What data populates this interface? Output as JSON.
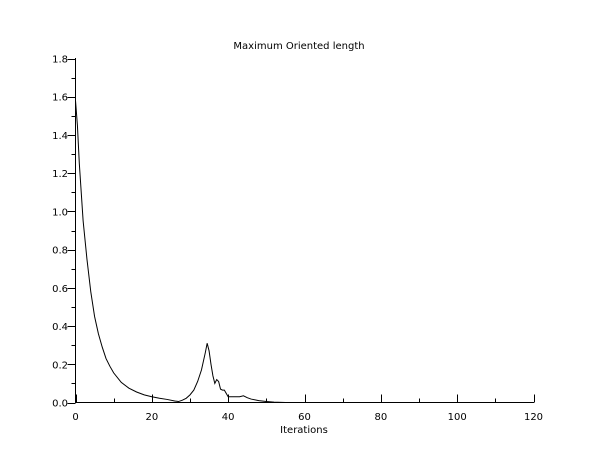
{
  "chart_data": {
    "type": "line",
    "title": "Maximum Oriented length",
    "xlabel": "Iterations",
    "ylabel": "",
    "xlim": [
      0,
      120
    ],
    "ylim": [
      0.0,
      1.8
    ],
    "xticks": [
      0,
      20,
      40,
      60,
      80,
      100,
      120
    ],
    "xtick_labels": [
      "0",
      "20",
      "40",
      "60",
      "80",
      "100",
      "120"
    ],
    "yticks": [
      0.0,
      0.2,
      0.4,
      0.6,
      0.8,
      1.0,
      1.2,
      1.4,
      1.6,
      1.8
    ],
    "ytick_labels": [
      "0.0",
      "0.2",
      "0.4",
      "0.6",
      "0.8",
      "1.0",
      "1.2",
      "1.4",
      "1.6",
      "1.8"
    ],
    "grid": false,
    "legend": "none",
    "colors": {
      "line": "#000000",
      "axes": "#000000",
      "background": "#ffffff"
    },
    "series": [
      {
        "x": [
          0,
          0.5,
          1,
          2,
          3,
          4,
          5,
          6,
          7,
          8,
          9,
          10,
          12,
          14,
          16,
          18,
          20,
          22,
          24,
          26,
          27,
          28,
          29,
          30,
          31,
          32,
          33,
          34,
          34.5,
          35,
          35.5,
          36,
          36.5,
          37,
          37.5,
          38,
          38.5,
          39,
          40,
          41,
          42,
          43,
          44,
          45,
          46,
          48,
          50,
          52,
          55,
          60,
          70,
          80,
          90,
          100,
          110,
          120
        ],
        "y": [
          1.58,
          1.45,
          1.25,
          0.95,
          0.75,
          0.58,
          0.45,
          0.36,
          0.29,
          0.23,
          0.19,
          0.155,
          0.105,
          0.075,
          0.055,
          0.04,
          0.03,
          0.022,
          0.016,
          0.008,
          0.005,
          0.012,
          0.022,
          0.04,
          0.065,
          0.11,
          0.17,
          0.26,
          0.31,
          0.27,
          0.2,
          0.14,
          0.1,
          0.12,
          0.11,
          0.07,
          0.065,
          0.065,
          0.03,
          0.03,
          0.03,
          0.03,
          0.035,
          0.025,
          0.018,
          0.01,
          0.005,
          0.002,
          0.0,
          0.0,
          0.0,
          0.0,
          0.0,
          0.0,
          0.0,
          0.0
        ]
      }
    ]
  }
}
